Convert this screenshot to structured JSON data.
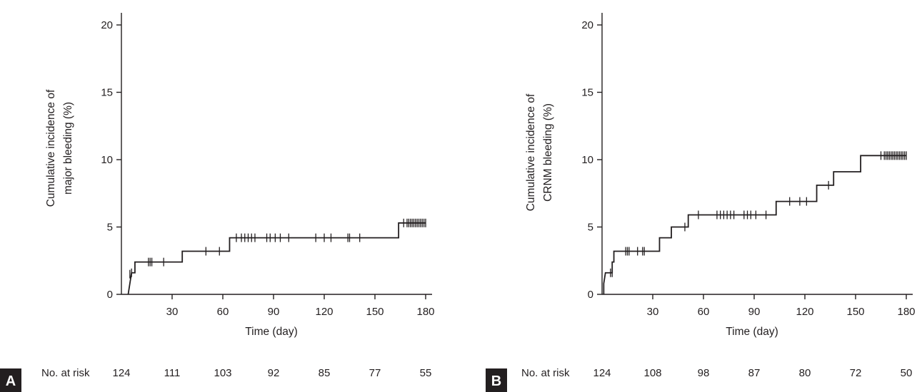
{
  "chart_data": [
    {
      "type": "line",
      "panel_label": "A",
      "xlabel": "Time (day)",
      "ylabel_lines": [
        "Cumulative incidence of",
        "major bleeding (%)"
      ],
      "xticks": [
        30,
        60,
        90,
        120,
        150,
        180
      ],
      "yticks": [
        0,
        5,
        10,
        15,
        20
      ],
      "xlim": [
        0,
        180
      ],
      "ylim": [
        0,
        20
      ],
      "step_curve": [
        [
          4,
          0
        ],
        [
          5,
          0.8
        ],
        [
          6,
          1.6
        ],
        [
          8,
          1.6
        ],
        [
          8,
          2.4
        ],
        [
          36,
          2.4
        ],
        [
          36,
          3.2
        ],
        [
          64,
          3.2
        ],
        [
          64,
          4.2
        ],
        [
          164,
          4.2
        ],
        [
          164,
          5.3
        ],
        [
          180,
          5.3
        ]
      ],
      "censor_marks": [
        [
          5,
          1.5
        ],
        [
          6,
          1.6
        ],
        [
          16,
          2.4
        ],
        [
          17,
          2.4
        ],
        [
          18,
          2.4
        ],
        [
          25,
          2.4
        ],
        [
          50,
          3.2
        ],
        [
          58,
          3.2
        ],
        [
          68,
          4.2
        ],
        [
          71,
          4.2
        ],
        [
          73,
          4.2
        ],
        [
          75,
          4.2
        ],
        [
          77,
          4.2
        ],
        [
          79,
          4.2
        ],
        [
          86,
          4.2
        ],
        [
          88,
          4.2
        ],
        [
          91,
          4.2
        ],
        [
          94,
          4.2
        ],
        [
          99,
          4.2
        ],
        [
          115,
          4.2
        ],
        [
          120,
          4.2
        ],
        [
          124,
          4.2
        ],
        [
          134,
          4.2
        ],
        [
          135,
          4.2
        ],
        [
          141,
          4.2
        ],
        [
          167,
          5.3
        ],
        [
          169,
          5.3
        ],
        [
          170,
          5.3
        ],
        [
          171,
          5.3
        ],
        [
          172,
          5.3
        ],
        [
          173,
          5.3
        ],
        [
          174,
          5.3
        ],
        [
          175,
          5.3
        ],
        [
          176,
          5.3
        ],
        [
          177,
          5.3
        ],
        [
          178,
          5.3
        ],
        [
          179,
          5.3
        ],
        [
          180,
          5.3
        ]
      ],
      "risk_table": {
        "label": "No. at risk",
        "counts": [
          "124",
          "111",
          "103",
          "92",
          "85",
          "77",
          "55"
        ]
      }
    },
    {
      "type": "line",
      "panel_label": "B",
      "xlabel": "Time (day)",
      "ylabel_lines": [
        "Cumulative incidence of",
        "CRNM bleeding (%)"
      ],
      "xticks": [
        30,
        60,
        90,
        120,
        150,
        180
      ],
      "yticks": [
        0,
        5,
        10,
        15,
        20
      ],
      "xlim": [
        0,
        180
      ],
      "ylim": [
        0,
        20
      ],
      "step_curve": [
        [
          1,
          0
        ],
        [
          1,
          0.8
        ],
        [
          2,
          1.6
        ],
        [
          6,
          1.6
        ],
        [
          6,
          2.4
        ],
        [
          7,
          2.4
        ],
        [
          7,
          3.2
        ],
        [
          34,
          3.2
        ],
        [
          34,
          4.2
        ],
        [
          41,
          4.2
        ],
        [
          41,
          5.0
        ],
        [
          51,
          5.0
        ],
        [
          51,
          5.9
        ],
        [
          103,
          5.9
        ],
        [
          103,
          6.9
        ],
        [
          127,
          6.9
        ],
        [
          127,
          8.1
        ],
        [
          137,
          8.1
        ],
        [
          137,
          9.1
        ],
        [
          153,
          9.1
        ],
        [
          153,
          10.3
        ],
        [
          180,
          10.3
        ]
      ],
      "censor_marks": [
        [
          5,
          1.6
        ],
        [
          6,
          1.6
        ],
        [
          14,
          3.2
        ],
        [
          15,
          3.2
        ],
        [
          16,
          3.2
        ],
        [
          21,
          3.2
        ],
        [
          24,
          3.2
        ],
        [
          25,
          3.2
        ],
        [
          49,
          5.0
        ],
        [
          57,
          5.9
        ],
        [
          68,
          5.9
        ],
        [
          70,
          5.9
        ],
        [
          72,
          5.9
        ],
        [
          74,
          5.9
        ],
        [
          76,
          5.9
        ],
        [
          78,
          5.9
        ],
        [
          84,
          5.9
        ],
        [
          86,
          5.9
        ],
        [
          88,
          5.9
        ],
        [
          91,
          5.9
        ],
        [
          97,
          5.9
        ],
        [
          111,
          6.9
        ],
        [
          117,
          6.9
        ],
        [
          121,
          6.9
        ],
        [
          134,
          8.1
        ],
        [
          165,
          10.3
        ],
        [
          167,
          10.3
        ],
        [
          168,
          10.3
        ],
        [
          169,
          10.3
        ],
        [
          170,
          10.3
        ],
        [
          171,
          10.3
        ],
        [
          172,
          10.3
        ],
        [
          173,
          10.3
        ],
        [
          174,
          10.3
        ],
        [
          175,
          10.3
        ],
        [
          176,
          10.3
        ],
        [
          177,
          10.3
        ],
        [
          178,
          10.3
        ],
        [
          179,
          10.3
        ],
        [
          180,
          10.3
        ]
      ],
      "risk_table": {
        "label": "No. at risk",
        "counts": [
          "124",
          "108",
          "98",
          "87",
          "80",
          "72",
          "50"
        ]
      }
    }
  ]
}
